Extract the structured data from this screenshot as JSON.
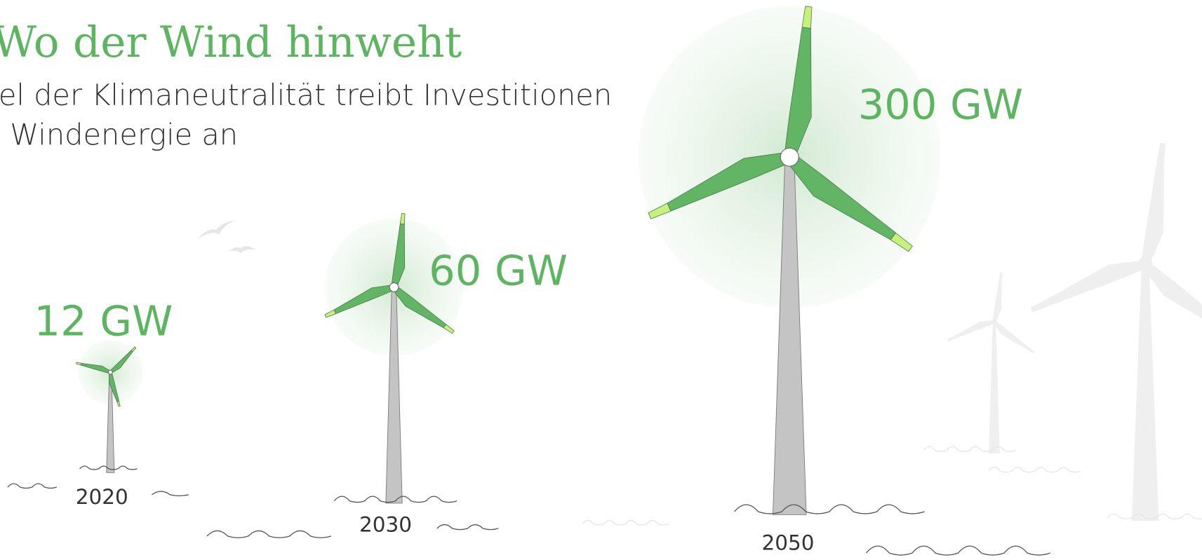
{
  "title": "Wo der Wind hinweht",
  "subtitle": [
    "el der Klimaneutralität treibt Investitionen",
    "Windenergie an"
  ],
  "turbines": [
    {
      "capacity": "12 GW",
      "year": "2020"
    },
    {
      "capacity": "60 GW",
      "year": "2030"
    },
    {
      "capacity": "300 GW",
      "year": "2050"
    }
  ]
}
